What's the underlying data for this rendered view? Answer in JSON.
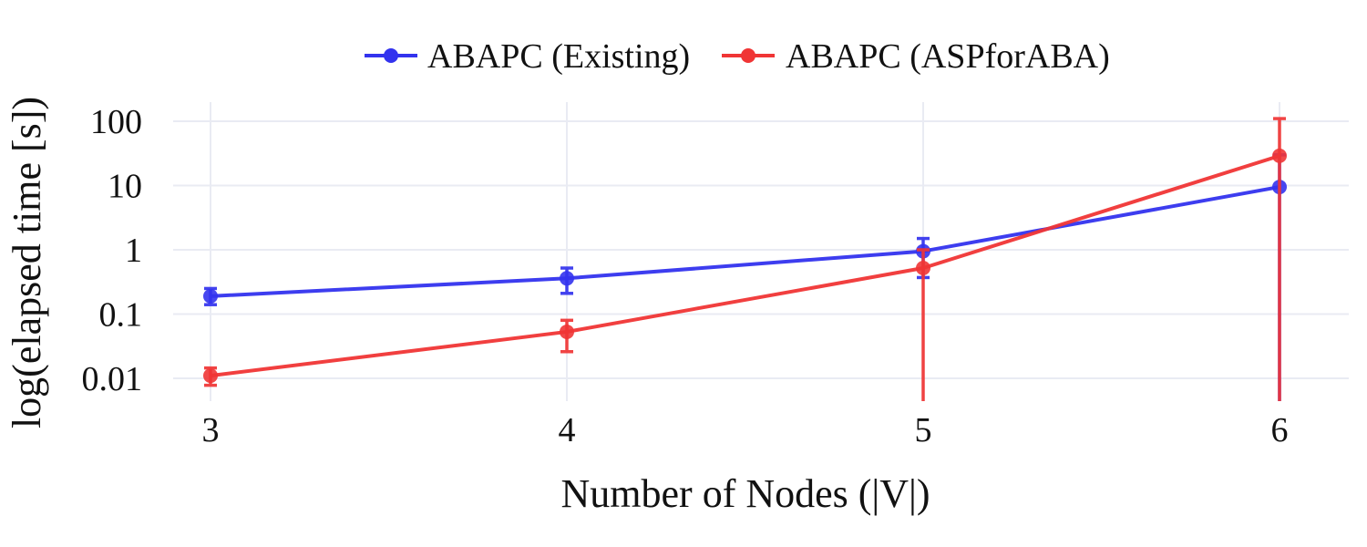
{
  "chart_data": {
    "type": "line",
    "title": "",
    "xlabel": "Number of Nodes (|V|)",
    "ylabel": "log(elapsed time [s])",
    "x": [
      3,
      4,
      5,
      6
    ],
    "x_ticks": [
      "3",
      "4",
      "5",
      "6"
    ],
    "y_scale": "log",
    "y_ticks": [
      {
        "value": 0.01,
        "label": "0.01"
      },
      {
        "value": 0.1,
        "label": "0.1"
      },
      {
        "value": 1,
        "label": "1"
      },
      {
        "value": 10,
        "label": "10"
      },
      {
        "value": 100,
        "label": "100"
      }
    ],
    "xlim": [
      2.8,
      6.2
    ],
    "ylim": [
      0.004,
      200
    ],
    "grid": true,
    "legend_position": "top-center",
    "series": [
      {
        "name": "ABAPC (Existing)",
        "color": "#3333ee",
        "values": [
          0.19,
          0.36,
          0.95,
          9.5
        ],
        "error_low": [
          0.14,
          0.21,
          0.37,
          0.001
        ],
        "error_high": [
          0.25,
          0.52,
          1.5,
          30
        ]
      },
      {
        "name": "ABAPC (ASPforABA)",
        "color": "#f03535",
        "values": [
          0.011,
          0.053,
          0.52,
          29
        ],
        "error_low": [
          0.0078,
          0.026,
          0.001,
          0.001
        ],
        "error_high": [
          0.0145,
          0.08,
          1.0,
          110
        ]
      }
    ]
  }
}
